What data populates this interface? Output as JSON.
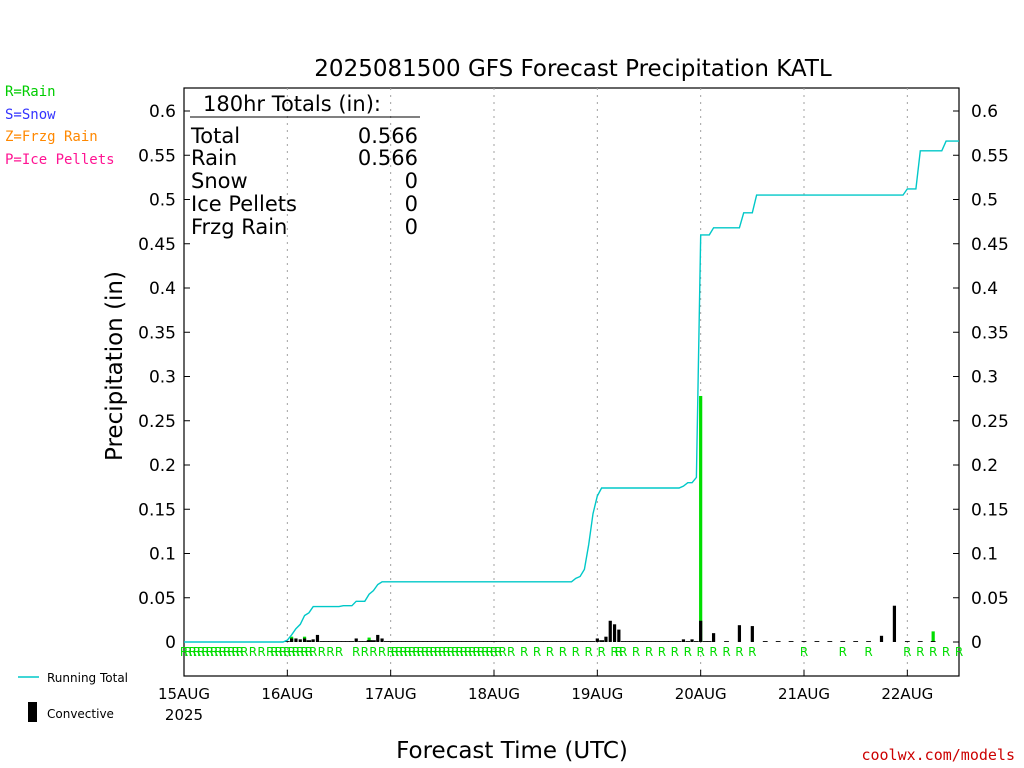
{
  "title": "2025081500 GFS Forecast Precipitation KATL",
  "watermark": "coolwx.com/models",
  "ptype_legend": [
    {
      "label": "R=Rain",
      "color": "#00cc00"
    },
    {
      "label": "S=Snow",
      "color": "#3333ff"
    },
    {
      "label": "Z=Frzg Rain",
      "color": "#ff8800"
    },
    {
      "label": "P=Ice Pellets",
      "color": "#ff1493"
    }
  ],
  "totals": {
    "header": "180hr Totals (in):",
    "rows": [
      {
        "label": "Total",
        "value": "0.566"
      },
      {
        "label": "Rain",
        "value": "0.566"
      },
      {
        "label": "Snow",
        "value": "0"
      },
      {
        "label": "Ice Pellets",
        "value": "0"
      },
      {
        "label": "Frzg Rain",
        "value": "0"
      }
    ]
  },
  "series_legend": {
    "running_total": "Running Total",
    "convective": "Convective"
  },
  "colors": {
    "running_total": "#00c8c8",
    "rain_bar": "#00dd00",
    "convective_bar": "#000000",
    "grid": "#a0a0a0"
  },
  "chart_data": {
    "type": "bar",
    "title": "2025081500 GFS Forecast Precipitation KATL",
    "xlabel": "Forecast Time (UTC)",
    "ylabel": "Precipitation (in)",
    "x_unit": "forecast hour",
    "xlim": [
      0,
      180
    ],
    "ylim": [
      -0.037,
      0.625
    ],
    "y_ticks": [
      0,
      0.05,
      0.1,
      0.15,
      0.2,
      0.25,
      0.3,
      0.35,
      0.4,
      0.45,
      0.5,
      0.55,
      0.6
    ],
    "y_tick_labels": [
      "0",
      "0.05",
      "0.1",
      "0.15",
      "0.2",
      "0.25",
      "0.3",
      "0.35",
      "0.4",
      "0.45",
      "0.5",
      "0.55",
      "0.6"
    ],
    "x_ticks": [
      {
        "hour": 0,
        "label": "15AUG",
        "sublabel": "2025"
      },
      {
        "hour": 24,
        "label": "16AUG"
      },
      {
        "hour": 48,
        "label": "17AUG"
      },
      {
        "hour": 72,
        "label": "18AUG"
      },
      {
        "hour": 96,
        "label": "19AUG"
      },
      {
        "hour": 120,
        "label": "20AUG"
      },
      {
        "hour": 144,
        "label": "21AUG"
      },
      {
        "hour": 168,
        "label": "22AUG"
      }
    ],
    "grid": "vertical dotted at day boundaries",
    "running_total": {
      "name": "Running Total",
      "points": [
        [
          0,
          0
        ],
        [
          23,
          0
        ],
        [
          24,
          0.002
        ],
        [
          25,
          0.008
        ],
        [
          26,
          0.015
        ],
        [
          27,
          0.02
        ],
        [
          28,
          0.03
        ],
        [
          29,
          0.033
        ],
        [
          30,
          0.04
        ],
        [
          36,
          0.04
        ],
        [
          37,
          0.041
        ],
        [
          39,
          0.041
        ],
        [
          40,
          0.046
        ],
        [
          42,
          0.046
        ],
        [
          43,
          0.054
        ],
        [
          44,
          0.058
        ],
        [
          45,
          0.065
        ],
        [
          46,
          0.068
        ],
        [
          90,
          0.068
        ],
        [
          91,
          0.072
        ],
        [
          92,
          0.074
        ],
        [
          93,
          0.082
        ],
        [
          94,
          0.11
        ],
        [
          95,
          0.145
        ],
        [
          96,
          0.165
        ],
        [
          97,
          0.174
        ],
        [
          115,
          0.174
        ],
        [
          116,
          0.176
        ],
        [
          117,
          0.18
        ],
        [
          118,
          0.18
        ],
        [
          119,
          0.186
        ],
        [
          120,
          0.46
        ],
        [
          122,
          0.46
        ],
        [
          123,
          0.468
        ],
        [
          129,
          0.468
        ],
        [
          130,
          0.485
        ],
        [
          132,
          0.485
        ],
        [
          133,
          0.505
        ],
        [
          167,
          0.505
        ],
        [
          168,
          0.512
        ],
        [
          170,
          0.512
        ],
        [
          171,
          0.555
        ],
        [
          176,
          0.555
        ],
        [
          177,
          0.566
        ],
        [
          180,
          0.566
        ]
      ]
    },
    "bars": {
      "hours": [
        24,
        25,
        26,
        27,
        28,
        29,
        30,
        31,
        32,
        33,
        34,
        35,
        36,
        37,
        38,
        39,
        40,
        41,
        42,
        43,
        44,
        45,
        46,
        47,
        48,
        49,
        50,
        51,
        52,
        53,
        54,
        55,
        56,
        57,
        58,
        59,
        60,
        61,
        62,
        63,
        64,
        65,
        66,
        67,
        68,
        69,
        70,
        71,
        72,
        73,
        74,
        75,
        76,
        77,
        78,
        79,
        80,
        81,
        82,
        83,
        84,
        85,
        86,
        87,
        88,
        89,
        90,
        91,
        92,
        93,
        94,
        95,
        96,
        97,
        98,
        99,
        100,
        101,
        102,
        103,
        104,
        105,
        106,
        107,
        108,
        109,
        110,
        111,
        112,
        113,
        114,
        115,
        116,
        117,
        118,
        119,
        120,
        121,
        122,
        123,
        126,
        129,
        132,
        135,
        138,
        141,
        144,
        147,
        150,
        153,
        156,
        159,
        162,
        165,
        168,
        171,
        174,
        177,
        180
      ],
      "total": [
        0.001,
        0.006,
        0.004,
        0.003,
        0.006,
        0.002,
        0.003,
        0.008,
        0.001,
        0.001,
        0.001,
        0.001,
        0.001,
        0.001,
        0.001,
        0.001,
        0.004,
        0.001,
        0.001,
        0.005,
        0.002,
        0.008,
        0.004,
        0.001,
        0.001,
        0.001,
        0.001,
        0.001,
        0.001,
        0.001,
        0.001,
        0.001,
        0.001,
        0.001,
        0.001,
        0.001,
        0.001,
        0.001,
        0.001,
        0.001,
        0.001,
        0.001,
        0.001,
        0.001,
        0.001,
        0.001,
        0.001,
        0.001,
        0.001,
        0.001,
        0.001,
        0.001,
        0.001,
        0.001,
        0.001,
        0.001,
        0.001,
        0.001,
        0.001,
        0.001,
        0.001,
        0.001,
        0.001,
        0.001,
        0.001,
        0.001,
        0.001,
        0.001,
        0.001,
        0.001,
        0.001,
        0.001,
        0.001,
        0.001,
        0.001,
        0.001,
        0.001,
        0.001,
        0.001,
        0.001,
        0.001,
        0.001,
        0.001,
        0.001,
        0.001,
        0.001,
        0.001,
        0.001,
        0.001,
        0.001,
        0.001,
        0.001,
        0.001,
        0.001,
        0.001,
        0.001,
        0.278,
        0.001,
        0.001,
        0.01,
        0.001,
        0.019,
        0.018,
        0.001,
        0.001,
        0.001,
        0.001,
        0.001,
        0.001,
        0.001,
        0.001,
        0.001,
        0.007,
        0.041,
        0.001,
        0.001,
        0.012
      ],
      "convective": [
        0.001,
        0.004,
        0.004,
        0.003,
        0.004,
        0.002,
        0.003,
        0.008,
        0.001,
        0.001,
        0.001,
        0.001,
        0.001,
        0.001,
        0.001,
        0.001,
        0.004,
        0.001,
        0.001,
        0.002,
        0.002,
        0.008,
        0.004,
        0.001,
        0.001,
        0.001,
        0.001,
        0.001,
        0.001,
        0.001,
        0.001,
        0.001,
        0.001,
        0.001,
        0.001,
        0.001,
        0.001,
        0.001,
        0.001,
        0.001,
        0.001,
        0.001,
        0.001,
        0.001,
        0.001,
        0.001,
        0.001,
        0.001,
        0.001,
        0.001,
        0.001,
        0.001,
        0.001,
        0.001,
        0.001,
        0.001,
        0.001,
        0.001,
        0.001,
        0.001,
        0.001,
        0.001,
        0.001,
        0.001,
        0.001,
        0.001,
        0.001,
        0.001,
        0.001,
        0.001,
        0.001,
        0.001,
        0.004,
        0.002,
        0.006,
        0.024,
        0.02,
        0.014,
        0.001,
        0.001,
        0.001,
        0.001,
        0.001,
        0.001,
        0.001,
        0.001,
        0.001,
        0.001,
        0.001,
        0.001,
        0.001,
        0.001,
        0.003,
        0.001,
        0.003,
        0.001,
        0.024,
        0.001,
        0.001,
        0.01,
        0.001,
        0.019,
        0.018,
        0.001,
        0.001,
        0.001,
        0.001,
        0.001,
        0.001,
        0.001,
        0.001,
        0.001,
        0.007,
        0.041,
        0.001,
        0.001,
        0.001
      ]
    },
    "ptype_markers": {
      "label": "R",
      "hours": [
        0,
        1,
        2,
        3,
        4,
        5,
        6,
        7,
        8,
        9,
        10,
        11,
        12,
        13,
        14,
        16,
        18,
        20,
        21,
        22,
        23,
        24,
        25,
        26,
        27,
        28,
        29,
        30,
        32,
        34,
        36,
        40,
        42,
        44,
        46,
        48,
        49,
        50,
        51,
        52,
        53,
        54,
        55,
        56,
        57,
        58,
        59,
        60,
        61,
        62,
        63,
        64,
        65,
        66,
        67,
        68,
        69,
        70,
        71,
        72,
        73,
        74,
        76,
        79,
        82,
        85,
        88,
        91,
        94,
        97,
        100,
        101,
        102,
        105,
        108,
        111,
        114,
        117,
        120,
        123,
        126,
        129,
        132,
        144,
        153,
        159,
        168,
        171,
        174,
        177,
        180
      ]
    },
    "legend": "bottom-left"
  }
}
